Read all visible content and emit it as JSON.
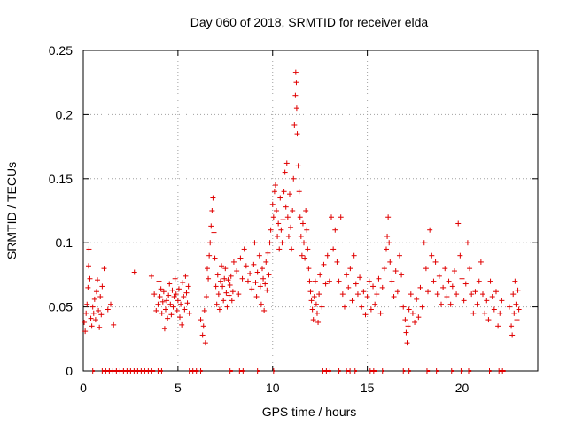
{
  "chart_data": {
    "type": "scatter",
    "title": "Day 060 of 2018, SRMTID for receiver elda",
    "xlabel": "GPS time / hours",
    "ylabel": "SRMTID / TECUs",
    "xlim": [
      0,
      24
    ],
    "ylim": [
      0,
      0.25
    ],
    "xticks": [
      0,
      5,
      10,
      15,
      20
    ],
    "xtick_labels": [
      "0",
      "5",
      "10",
      "15",
      "20"
    ],
    "yticks": [
      0,
      0.05,
      0.1,
      0.15,
      0.2,
      0.25
    ],
    "ytick_labels": [
      "0",
      "0.05",
      "0.1",
      "0.15",
      "0.2",
      "0.25"
    ],
    "grid": true,
    "marker": "+",
    "color": "#e00000",
    "series": [
      {
        "name": "SRMTID",
        "points": [
          [
            0.05,
            0.038
          ],
          [
            0.1,
            0.031
          ],
          [
            0.15,
            0.045
          ],
          [
            0.2,
            0.052
          ],
          [
            0.25,
            0.065
          ],
          [
            0.28,
            0.082
          ],
          [
            0.3,
            0.095
          ],
          [
            0.35,
            0.072
          ],
          [
            0.4,
            0.041
          ],
          [
            0.45,
            0.035
          ],
          [
            0.5,
            0.05
          ],
          [
            0.55,
            0.045
          ],
          [
            0.6,
            0.056
          ],
          [
            0.65,
            0.04
          ],
          [
            0.7,
            0.062
          ],
          [
            0.75,
            0.071
          ],
          [
            0.8,
            0.047
          ],
          [
            0.85,
            0.034
          ],
          [
            0.9,
            0.058
          ],
          [
            0.95,
            0.044
          ],
          [
            1.0,
            0.066
          ],
          [
            1.1,
            0.08
          ],
          [
            1.3,
            0.048
          ],
          [
            1.45,
            0.052
          ],
          [
            1.6,
            0.036
          ],
          [
            2.7,
            0.077
          ],
          [
            3.6,
            0.074
          ],
          [
            3.75,
            0.06
          ],
          [
            3.85,
            0.047
          ],
          [
            3.95,
            0.052
          ],
          [
            4.0,
            0.07
          ],
          [
            4.05,
            0.058
          ],
          [
            4.1,
            0.064
          ],
          [
            4.15,
            0.045
          ],
          [
            4.2,
            0.054
          ],
          [
            4.25,
            0.062
          ],
          [
            4.3,
            0.033
          ],
          [
            4.35,
            0.048
          ],
          [
            4.4,
            0.055
          ],
          [
            4.45,
            0.041
          ],
          [
            4.5,
            0.059
          ],
          [
            4.55,
            0.068
          ],
          [
            4.6,
            0.052
          ],
          [
            4.65,
            0.044
          ],
          [
            4.7,
            0.063
          ],
          [
            4.75,
            0.05
          ],
          [
            4.8,
            0.058
          ],
          [
            4.85,
            0.072
          ],
          [
            4.9,
            0.06
          ],
          [
            4.95,
            0.047
          ],
          [
            5.0,
            0.055
          ],
          [
            5.05,
            0.064
          ],
          [
            5.1,
            0.042
          ],
          [
            5.15,
            0.052
          ],
          [
            5.2,
            0.036
          ],
          [
            5.25,
            0.069
          ],
          [
            5.3,
            0.058
          ],
          [
            5.35,
            0.048
          ],
          [
            5.4,
            0.074
          ],
          [
            5.45,
            0.061
          ],
          [
            5.5,
            0.053
          ],
          [
            5.55,
            0.066
          ],
          [
            5.6,
            0.045
          ],
          [
            6.2,
            0.04
          ],
          [
            6.3,
            0.028
          ],
          [
            6.35,
            0.035
          ],
          [
            6.4,
            0.047
          ],
          [
            6.45,
            0.022
          ],
          [
            6.5,
            0.058
          ],
          [
            6.55,
            0.08
          ],
          [
            6.6,
            0.072
          ],
          [
            6.65,
            0.09
          ],
          [
            6.7,
            0.1
          ],
          [
            6.75,
            0.113
          ],
          [
            6.8,
            0.125
          ],
          [
            6.85,
            0.135
          ],
          [
            6.9,
            0.108
          ],
          [
            6.95,
            0.088
          ],
          [
            7.0,
            0.066
          ],
          [
            7.05,
            0.052
          ],
          [
            7.1,
            0.075
          ],
          [
            7.15,
            0.06
          ],
          [
            7.2,
            0.048
          ],
          [
            7.25,
            0.07
          ],
          [
            7.3,
            0.082
          ],
          [
            7.35,
            0.066
          ],
          [
            7.4,
            0.055
          ],
          [
            7.45,
            0.072
          ],
          [
            7.5,
            0.08
          ],
          [
            7.55,
            0.061
          ],
          [
            7.6,
            0.05
          ],
          [
            7.65,
            0.071
          ],
          [
            7.7,
            0.059
          ],
          [
            7.75,
            0.067
          ],
          [
            7.8,
            0.074
          ],
          [
            7.85,
            0.055
          ],
          [
            7.9,
            0.062
          ],
          [
            7.95,
            0.085
          ],
          [
            8.1,
            0.078
          ],
          [
            8.2,
            0.06
          ],
          [
            8.3,
            0.088
          ],
          [
            8.4,
            0.072
          ],
          [
            8.5,
            0.095
          ],
          [
            8.6,
            0.082
          ],
          [
            8.7,
            0.07
          ],
          [
            8.8,
            0.076
          ],
          [
            8.9,
            0.064
          ],
          [
            9.0,
            0.083
          ],
          [
            9.05,
            0.1
          ],
          [
            9.1,
            0.069
          ],
          [
            9.15,
            0.058
          ],
          [
            9.2,
            0.077
          ],
          [
            9.3,
            0.09
          ],
          [
            9.35,
            0.066
          ],
          [
            9.4,
            0.052
          ],
          [
            9.45,
            0.08
          ],
          [
            9.5,
            0.072
          ],
          [
            9.55,
            0.047
          ],
          [
            9.6,
            0.068
          ],
          [
            9.65,
            0.085
          ],
          [
            9.7,
            0.063
          ],
          [
            9.75,
            0.092
          ],
          [
            9.8,
            0.075
          ],
          [
            9.85,
            0.1
          ],
          [
            9.9,
            0.11
          ],
          [
            10.0,
            0.13
          ],
          [
            10.05,
            0.12
          ],
          [
            10.1,
            0.14
          ],
          [
            10.15,
            0.145
          ],
          [
            10.2,
            0.125
          ],
          [
            10.25,
            0.105
          ],
          [
            10.3,
            0.115
          ],
          [
            10.35,
            0.095
          ],
          [
            10.4,
            0.135
          ],
          [
            10.45,
            0.11
          ],
          [
            10.5,
            0.1
          ],
          [
            10.55,
            0.118
          ],
          [
            10.6,
            0.14
          ],
          [
            10.65,
            0.155
          ],
          [
            10.7,
            0.128
          ],
          [
            10.75,
            0.162
          ],
          [
            10.8,
            0.12
          ],
          [
            10.85,
            0.105
          ],
          [
            10.9,
            0.138
          ],
          [
            10.95,
            0.112
          ],
          [
            11.0,
            0.095
          ],
          [
            11.05,
            0.125
          ],
          [
            11.1,
            0.15
          ],
          [
            11.15,
            0.192
          ],
          [
            11.2,
            0.215
          ],
          [
            11.22,
            0.233
          ],
          [
            11.25,
            0.225
          ],
          [
            11.27,
            0.205
          ],
          [
            11.3,
            0.185
          ],
          [
            11.35,
            0.16
          ],
          [
            11.4,
            0.14
          ],
          [
            11.45,
            0.12
          ],
          [
            11.5,
            0.105
          ],
          [
            11.55,
            0.09
          ],
          [
            11.6,
            0.115
          ],
          [
            11.65,
            0.1
          ],
          [
            11.7,
            0.088
          ],
          [
            11.75,
            0.125
          ],
          [
            11.8,
            0.11
          ],
          [
            11.85,
            0.095
          ],
          [
            11.9,
            0.08
          ],
          [
            11.95,
            0.07
          ],
          [
            12.0,
            0.062
          ],
          [
            12.05,
            0.055
          ],
          [
            12.1,
            0.048
          ],
          [
            12.15,
            0.04
          ],
          [
            12.2,
            0.058
          ],
          [
            12.25,
            0.07
          ],
          [
            12.3,
            0.052
          ],
          [
            12.35,
            0.045
          ],
          [
            12.4,
            0.038
          ],
          [
            12.45,
            0.06
          ],
          [
            12.5,
            0.075
          ],
          [
            12.6,
            0.05
          ],
          [
            12.7,
            0.083
          ],
          [
            12.8,
            0.068
          ],
          [
            12.9,
            0.09
          ],
          [
            13.0,
            0.07
          ],
          [
            13.1,
            0.12
          ],
          [
            13.2,
            0.095
          ],
          [
            13.3,
            0.11
          ],
          [
            13.4,
            0.085
          ],
          [
            13.5,
            0.07
          ],
          [
            13.6,
            0.12
          ],
          [
            13.7,
            0.06
          ],
          [
            13.8,
            0.05
          ],
          [
            13.9,
            0.075
          ],
          [
            14.0,
            0.065
          ],
          [
            14.1,
            0.08
          ],
          [
            14.2,
            0.055
          ],
          [
            14.3,
            0.09
          ],
          [
            14.4,
            0.068
          ],
          [
            14.5,
            0.06
          ],
          [
            14.6,
            0.073
          ],
          [
            14.7,
            0.05
          ],
          [
            14.8,
            0.062
          ],
          [
            14.9,
            0.044
          ],
          [
            15.0,
            0.058
          ],
          [
            15.1,
            0.07
          ],
          [
            15.2,
            0.048
          ],
          [
            15.3,
            0.066
          ],
          [
            15.4,
            0.052
          ],
          [
            15.5,
            0.06
          ],
          [
            15.6,
            0.072
          ],
          [
            15.7,
            0.045
          ],
          [
            15.8,
            0.065
          ],
          [
            15.9,
            0.08
          ],
          [
            16.0,
            0.095
          ],
          [
            16.05,
            0.105
          ],
          [
            16.1,
            0.12
          ],
          [
            16.15,
            0.1
          ],
          [
            16.2,
            0.085
          ],
          [
            16.3,
            0.07
          ],
          [
            16.4,
            0.058
          ],
          [
            16.5,
            0.078
          ],
          [
            16.6,
            0.062
          ],
          [
            16.7,
            0.09
          ],
          [
            16.8,
            0.075
          ],
          [
            16.9,
            0.05
          ],
          [
            17.0,
            0.04
          ],
          [
            17.05,
            0.03
          ],
          [
            17.1,
            0.022
          ],
          [
            17.15,
            0.035
          ],
          [
            17.2,
            0.048
          ],
          [
            17.3,
            0.06
          ],
          [
            17.4,
            0.045
          ],
          [
            17.5,
            0.038
          ],
          [
            17.6,
            0.056
          ],
          [
            17.7,
            0.042
          ],
          [
            17.8,
            0.065
          ],
          [
            17.9,
            0.05
          ],
          [
            18.0,
            0.1
          ],
          [
            18.1,
            0.08
          ],
          [
            18.2,
            0.062
          ],
          [
            18.3,
            0.11
          ],
          [
            18.4,
            0.09
          ],
          [
            18.5,
            0.07
          ],
          [
            18.6,
            0.085
          ],
          [
            18.7,
            0.06
          ],
          [
            18.8,
            0.074
          ],
          [
            18.9,
            0.052
          ],
          [
            19.0,
            0.065
          ],
          [
            19.1,
            0.08
          ],
          [
            19.2,
            0.058
          ],
          [
            19.3,
            0.07
          ],
          [
            19.4,
            0.052
          ],
          [
            19.5,
            0.066
          ],
          [
            19.6,
            0.078
          ],
          [
            19.7,
            0.06
          ],
          [
            19.8,
            0.115
          ],
          [
            19.9,
            0.09
          ],
          [
            20.0,
            0.072
          ],
          [
            20.1,
            0.055
          ],
          [
            20.2,
            0.068
          ],
          [
            20.3,
            0.1
          ],
          [
            20.4,
            0.08
          ],
          [
            20.5,
            0.06
          ],
          [
            20.6,
            0.045
          ],
          [
            20.7,
            0.062
          ],
          [
            20.8,
            0.052
          ],
          [
            20.9,
            0.07
          ],
          [
            21.0,
            0.085
          ],
          [
            21.1,
            0.06
          ],
          [
            21.2,
            0.045
          ],
          [
            21.3,
            0.055
          ],
          [
            21.4,
            0.04
          ],
          [
            21.5,
            0.07
          ],
          [
            21.6,
            0.058
          ],
          [
            21.7,
            0.048
          ],
          [
            21.8,
            0.062
          ],
          [
            21.9,
            0.035
          ],
          [
            22.0,
            0.045
          ],
          [
            22.1,
            0.055
          ],
          [
            22.5,
            0.05
          ],
          [
            22.6,
            0.035
          ],
          [
            22.65,
            0.028
          ],
          [
            22.7,
            0.06
          ],
          [
            22.75,
            0.045
          ],
          [
            22.8,
            0.07
          ],
          [
            22.85,
            0.052
          ],
          [
            22.9,
            0.04
          ],
          [
            22.95,
            0.063
          ],
          [
            23.0,
            0.048
          ]
        ]
      }
    ],
    "baseline_segments": [
      [
        0.5,
        0.6
      ],
      [
        1.0,
        3.8
      ],
      [
        3.95,
        4.2
      ],
      [
        5.6,
        6.1
      ],
      [
        6.2,
        6.3
      ],
      [
        7.75,
        7.9
      ],
      [
        8.25,
        8.5
      ],
      [
        9.2,
        9.3
      ],
      [
        10.05,
        10.1
      ],
      [
        12.65,
        13.1
      ],
      [
        13.5,
        13.6
      ],
      [
        13.9,
        14.1
      ],
      [
        14.35,
        14.45
      ],
      [
        15.15,
        15.5
      ],
      [
        15.8,
        15.9
      ],
      [
        16.9,
        17.0
      ],
      [
        17.2,
        17.3
      ],
      [
        18.15,
        18.3
      ],
      [
        18.65,
        18.75
      ],
      [
        19.45,
        19.55
      ],
      [
        19.95,
        20.05
      ],
      [
        20.35,
        20.5
      ],
      [
        21.45,
        21.55
      ],
      [
        21.95,
        22.3
      ]
    ]
  }
}
